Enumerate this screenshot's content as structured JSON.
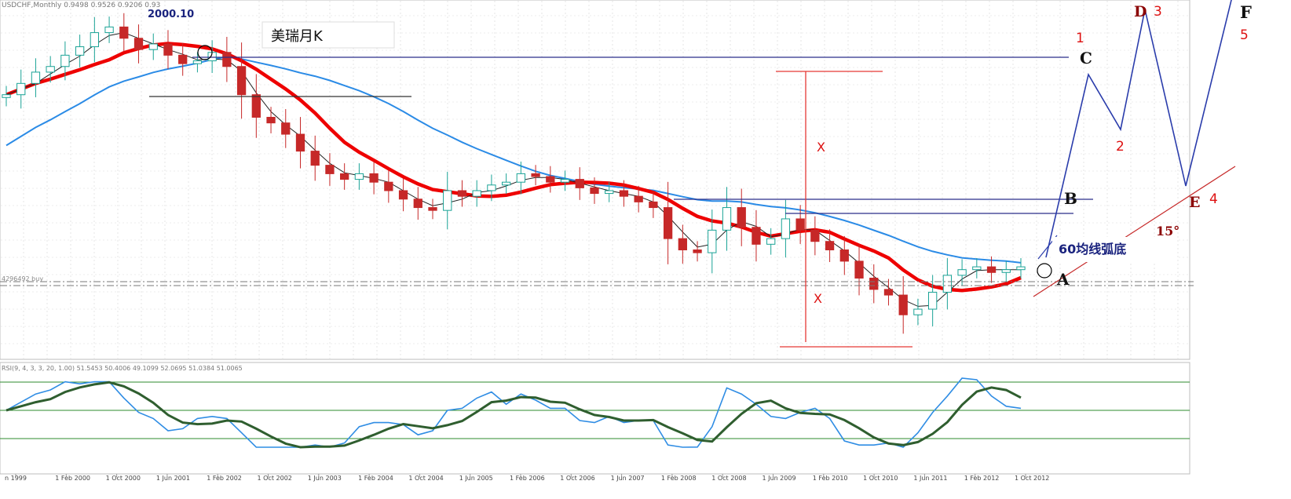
{
  "header": {
    "symbol_info": "USDCHF,Monthly  0.9498 0.9526 0.9206 0.93",
    "annotation_date": "2000.10",
    "title_box": "美瑞月K",
    "level_tag": "4296492 buy",
    "indicator_info": "RSI(9, 4, 3, 3, 20, 1.00) 51.5453 50.4006 49.1099 52.0695 51.0384 51.0065"
  },
  "labels": {
    "c": "C",
    "b": "B",
    "a": "A",
    "d": "D",
    "e": "E",
    "f": "F",
    "n1": "1",
    "n2": "2",
    "n3": "3",
    "n4": "4",
    "n5": "5",
    "x_upper": "X",
    "x_lower": "X",
    "angle": "15°",
    "ma60_note": "60均线弧底"
  },
  "colors": {
    "candle_up": "#1aa396",
    "candle_down": "#c62828",
    "ma_red": "#ee0000",
    "ma_blue": "#2b8be6",
    "ma_black": "#222222",
    "level_line": "#2a2f8a",
    "projection": "#2a3cab",
    "oscillator_green": "#2f5e2f",
    "oscillator_blue": "#2f8de4",
    "osc_levels": "#2e8b2e"
  },
  "chart_data": {
    "type": "candlestick",
    "x_ticks": [
      "n 1999",
      "1 Feb 2000",
      "1 Oct 2000",
      "1 Jun 2001",
      "1 Feb 2002",
      "1 Oct 2002",
      "1 Jun 2003",
      "1 Feb 2004",
      "1 Oct 2004",
      "1 Jun 2005",
      "1 Feb 2006",
      "1 Oct 2006",
      "1 Jun 2007",
      "1 Feb 2008",
      "1 Oct 2008",
      "1 Jun 2009",
      "1 Feb 2010",
      "1 Oct 2010",
      "1 Jun 2011",
      "1 Feb 2012",
      "1 Oct 2012"
    ],
    "series": [
      {
        "name": "close",
        "values": [
          1.56,
          1.6,
          1.64,
          1.66,
          1.7,
          1.73,
          1.78,
          1.8,
          1.76,
          1.72,
          1.74,
          1.7,
          1.67,
          1.68,
          1.71,
          1.66,
          1.56,
          1.48,
          1.46,
          1.42,
          1.36,
          1.31,
          1.28,
          1.26,
          1.28,
          1.25,
          1.22,
          1.19,
          1.16,
          1.15,
          1.22,
          1.2,
          1.22,
          1.24,
          1.25,
          1.28,
          1.27,
          1.25,
          1.26,
          1.23,
          1.21,
          1.22,
          1.2,
          1.18,
          1.16,
          1.05,
          1.01,
          1.0,
          1.08,
          1.16,
          1.09,
          1.03,
          1.05,
          1.12,
          1.08,
          1.04,
          1.01,
          0.97,
          0.91,
          0.87,
          0.85,
          0.78,
          0.8,
          0.86,
          0.92,
          0.94,
          0.95,
          0.93,
          0.94,
          0.95
        ]
      }
    ]
  }
}
